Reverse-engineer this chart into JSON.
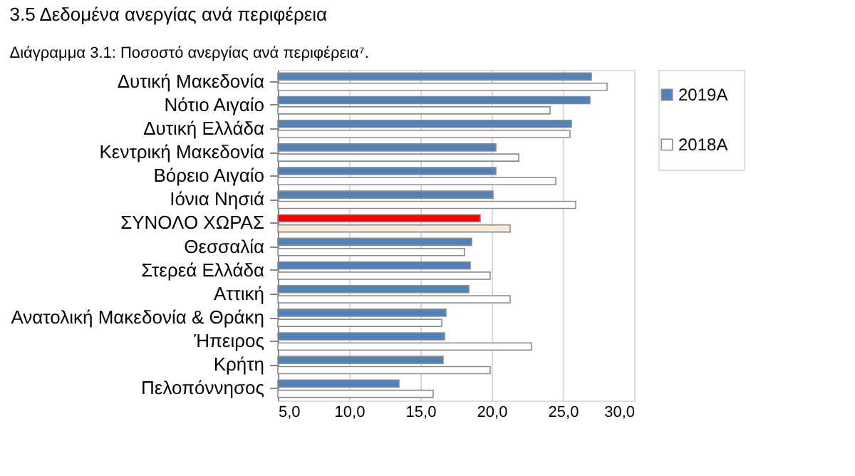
{
  "chart_data": {
    "type": "bar",
    "orientation": "horizontal",
    "title": "3.5   Δεδομένα ανεργίας ανά περιφέρεια",
    "subtitle": "Διάγραμμα 3.1:        Ποσοστό ανεργίας ανά περιφέρεια⁷.",
    "categories": [
      "Δυτική Μακεδονία",
      "Νότιο Αιγαίο",
      "Δυτική Ελλάδα",
      "Κεντρική Μακεδονία",
      "Βόρειο Αιγαίο",
      "Ιόνια Νησιά",
      "ΣΥΝΟΛΟ ΧΩΡΑΣ",
      "Θεσσαλία",
      "Στερεά Ελλάδα",
      "Αττική",
      "Ανατολική Μακεδονία & Θράκη",
      "Ήπειρος",
      "Κρήτη",
      "Πελοπόννησος"
    ],
    "series": [
      {
        "name": "2019Α",
        "color": "#4f81bd",
        "colors": [
          "#4f81bd",
          "#4f81bd",
          "#4f81bd",
          "#4f81bd",
          "#4f81bd",
          "#4f81bd",
          "#ff0000",
          "#4f81bd",
          "#4f81bd",
          "#4f81bd",
          "#4f81bd",
          "#4f81bd",
          "#4f81bd",
          "#4f81bd"
        ],
        "values": [
          27.0,
          26.9,
          25.6,
          20.3,
          20.3,
          20.1,
          19.2,
          18.6,
          18.5,
          18.4,
          16.8,
          16.7,
          16.6,
          13.5
        ]
      },
      {
        "name": "2018Α",
        "color": "#ffffff",
        "colors": [
          "#ffffff",
          "#ffffff",
          "#ffffff",
          "#ffffff",
          "#ffffff",
          "#ffffff",
          "#fde9d9",
          "#ffffff",
          "#ffffff",
          "#ffffff",
          "#ffffff",
          "#ffffff",
          "#ffffff",
          "#ffffff"
        ],
        "values": [
          28.1,
          24.1,
          25.5,
          21.9,
          24.5,
          25.9,
          21.3,
          18.1,
          19.9,
          21.3,
          16.5,
          22.8,
          19.9,
          15.9
        ]
      }
    ],
    "xlim": [
      5,
      30
    ],
    "xticks": [
      {
        "value": 5,
        "label": "5,0"
      },
      {
        "value": 10,
        "label": "10,0"
      },
      {
        "value": 15,
        "label": "15,0"
      },
      {
        "value": 20,
        "label": "20,0"
      },
      {
        "value": 25,
        "label": "25,0"
      },
      {
        "value": 30,
        "label": "30,0"
      }
    ],
    "grid": "x",
    "legend": "right"
  }
}
